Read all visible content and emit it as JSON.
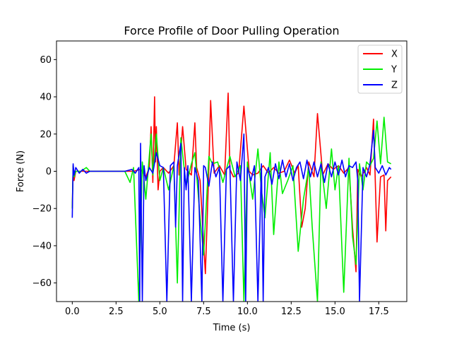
{
  "chart_data": {
    "type": "line",
    "title": "Force Profile of Door Pulling Operation",
    "xlabel": "Time (s)",
    "ylabel": "Force (N)",
    "xlim": [
      -0.9,
      19.1
    ],
    "ylim": [
      -70,
      70
    ],
    "xticks": [
      0.0,
      2.5,
      5.0,
      7.5,
      10.0,
      12.5,
      15.0,
      17.5
    ],
    "xtick_labels": [
      "0.0",
      "2.5",
      "5.0",
      "7.5",
      "10.0",
      "12.5",
      "15.0",
      "17.5"
    ],
    "yticks": [
      -60,
      -40,
      -20,
      0,
      20,
      40,
      60
    ],
    "ytick_labels": [
      "−60",
      "−40",
      "−20",
      "0",
      "20",
      "40",
      "60"
    ],
    "grid": false,
    "legend_position": "top-right",
    "series": [
      {
        "name": "X",
        "color": "#ff0000",
        "x": [
          0.0,
          0.05,
          0.1,
          0.2,
          0.5,
          1.0,
          2.0,
          3.0,
          3.5,
          3.9,
          4.2,
          4.4,
          4.5,
          4.6,
          4.7,
          4.75,
          4.8,
          4.9,
          5.0,
          5.2,
          5.5,
          5.8,
          6.0,
          6.1,
          6.3,
          6.5,
          6.8,
          7.0,
          7.1,
          7.3,
          7.6,
          7.8,
          7.9,
          8.1,
          8.4,
          8.7,
          8.9,
          9.0,
          9.2,
          9.5,
          9.8,
          10.1,
          10.3,
          10.6,
          10.9,
          11.2,
          11.5,
          11.8,
          12.1,
          12.4,
          12.7,
          12.9,
          13.1,
          13.3,
          13.5,
          13.8,
          14.0,
          14.3,
          14.6,
          14.9,
          15.2,
          15.5,
          15.8,
          16.0,
          16.2,
          16.3,
          16.5,
          16.8,
          17.0,
          17.2,
          17.4,
          17.6,
          17.8,
          17.9,
          18.0,
          18.2
        ],
        "y": [
          -20,
          3,
          -5,
          0,
          0,
          0,
          0,
          0,
          0,
          1,
          -3,
          2,
          24,
          -6,
          40,
          5,
          24,
          -10,
          0,
          2,
          -1,
          3,
          26,
          -2,
          24,
          1,
          -2,
          26,
          2,
          -5,
          -55,
          2,
          38,
          -1,
          3,
          -2,
          42,
          1,
          -3,
          -1,
          35,
          0,
          -2,
          -1,
          3,
          -1,
          2,
          -1,
          0,
          6,
          -1,
          3,
          -30,
          -20,
          5,
          -3,
          31,
          -2,
          4,
          1,
          3,
          -1,
          2,
          -30,
          -54,
          1,
          -3,
          2,
          -2,
          28,
          -38,
          -3,
          -2,
          -32,
          -5,
          -3
        ]
      },
      {
        "name": "Y",
        "color": "#00ee00",
        "x": [
          0.0,
          0.05,
          0.1,
          0.2,
          0.5,
          0.8,
          1.0,
          2.0,
          3.0,
          3.3,
          3.5,
          3.8,
          4.0,
          4.2,
          4.5,
          4.6,
          4.8,
          5.0,
          5.2,
          5.5,
          5.8,
          6.0,
          6.2,
          6.5,
          6.8,
          7.0,
          7.3,
          7.5,
          7.8,
          8.0,
          8.3,
          8.6,
          9.0,
          9.3,
          9.6,
          9.8,
          10.0,
          10.3,
          10.6,
          10.8,
          11.0,
          11.3,
          11.5,
          11.8,
          12.0,
          12.3,
          12.6,
          12.9,
          13.2,
          13.5,
          13.7,
          14.0,
          14.2,
          14.5,
          14.8,
          15.0,
          15.2,
          15.5,
          15.8,
          16.0,
          16.2,
          16.4,
          16.6,
          16.8,
          17.0,
          17.2,
          17.4,
          17.6,
          17.8,
          18.0,
          18.2
        ],
        "y": [
          -20,
          3,
          -3,
          0,
          0,
          2,
          0,
          0,
          0,
          -6,
          2,
          -70,
          5,
          -15,
          20,
          -2,
          20,
          -5,
          2,
          -10,
          3,
          -60,
          18,
          -8,
          4,
          10,
          -25,
          -45,
          8,
          4,
          5,
          -6,
          8,
          -3,
          3,
          -70,
          5,
          -15,
          12,
          -10,
          -25,
          10,
          -34,
          5,
          -12,
          -5,
          3,
          -43,
          -15,
          2,
          -30,
          -70,
          5,
          -20,
          12,
          -10,
          3,
          -65,
          7,
          -35,
          -50,
          4,
          -10,
          5,
          3,
          7,
          27,
          4,
          29,
          5,
          4
        ]
      },
      {
        "name": "Z",
        "color": "#0000ff",
        "x": [
          0.0,
          0.05,
          0.1,
          0.2,
          0.4,
          0.6,
          0.8,
          1.0,
          1.5,
          2.0,
          2.5,
          3.0,
          3.4,
          3.6,
          3.8,
          3.85,
          3.9,
          4.0,
          4.1,
          4.2,
          4.4,
          4.6,
          4.8,
          5.0,
          5.2,
          5.4,
          5.6,
          5.8,
          5.9,
          6.0,
          6.2,
          6.3,
          6.4,
          6.5,
          6.6,
          6.8,
          7.0,
          7.2,
          7.4,
          7.5,
          7.6,
          7.8,
          8.0,
          8.2,
          8.4,
          8.6,
          8.8,
          9.0,
          9.2,
          9.4,
          9.6,
          9.8,
          9.9,
          10.0,
          10.2,
          10.4,
          10.6,
          10.8,
          10.9,
          11.0,
          11.2,
          11.4,
          11.6,
          11.8,
          12.0,
          12.2,
          12.4,
          12.6,
          12.8,
          13.0,
          13.2,
          13.4,
          13.6,
          13.8,
          14.0,
          14.2,
          14.4,
          14.6,
          14.8,
          15.0,
          15.2,
          15.4,
          15.6,
          15.8,
          16.0,
          16.2,
          16.3,
          16.4,
          16.6,
          16.8,
          17.0,
          17.2,
          17.3,
          17.5,
          17.7,
          17.9,
          18.1,
          18.2
        ],
        "y": [
          -25,
          4,
          -2,
          2,
          -1,
          1,
          -1,
          0,
          0,
          0,
          0,
          0,
          1,
          -1,
          2,
          -70,
          15,
          -70,
          3,
          -5,
          2,
          -1,
          10,
          3,
          2,
          -70,
          3,
          5,
          -30,
          3,
          15,
          -70,
          2,
          -10,
          3,
          -70,
          2,
          -5,
          -70,
          3,
          2,
          -8,
          5,
          -3,
          2,
          -70,
          1,
          3,
          -70,
          5,
          -5,
          20,
          -70,
          2,
          -5,
          3,
          -70,
          4,
          -70,
          -3,
          2,
          -7,
          4,
          -4,
          6,
          -3,
          4,
          -5,
          2,
          5,
          -4,
          6,
          -3,
          5,
          -3,
          4,
          -6,
          4,
          -3,
          5,
          -2,
          6,
          -3,
          3,
          2,
          5,
          -5,
          -70,
          2,
          -3,
          4,
          22,
          2,
          -1,
          3,
          -2,
          2,
          1
        ]
      }
    ]
  }
}
